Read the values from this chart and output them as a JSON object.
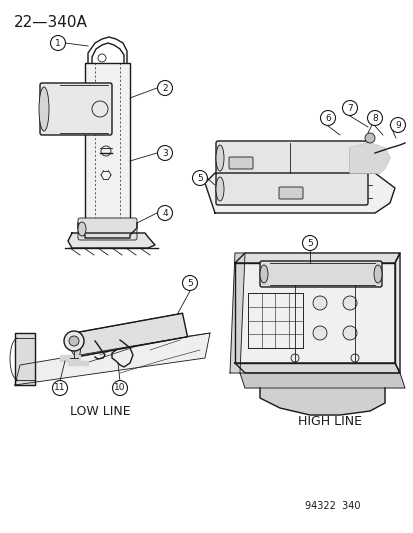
{
  "title": "22—340A",
  "ref_number": "94322  340",
  "low_line_label": "LOW LINE",
  "high_line_label": "HIGH LINE",
  "bg_color": "#ffffff",
  "line_color": "#1a1a1a",
  "title_fontsize": 11,
  "label_fontsize": 8,
  "callout_fontsize": 6.5,
  "ref_fontsize": 7
}
